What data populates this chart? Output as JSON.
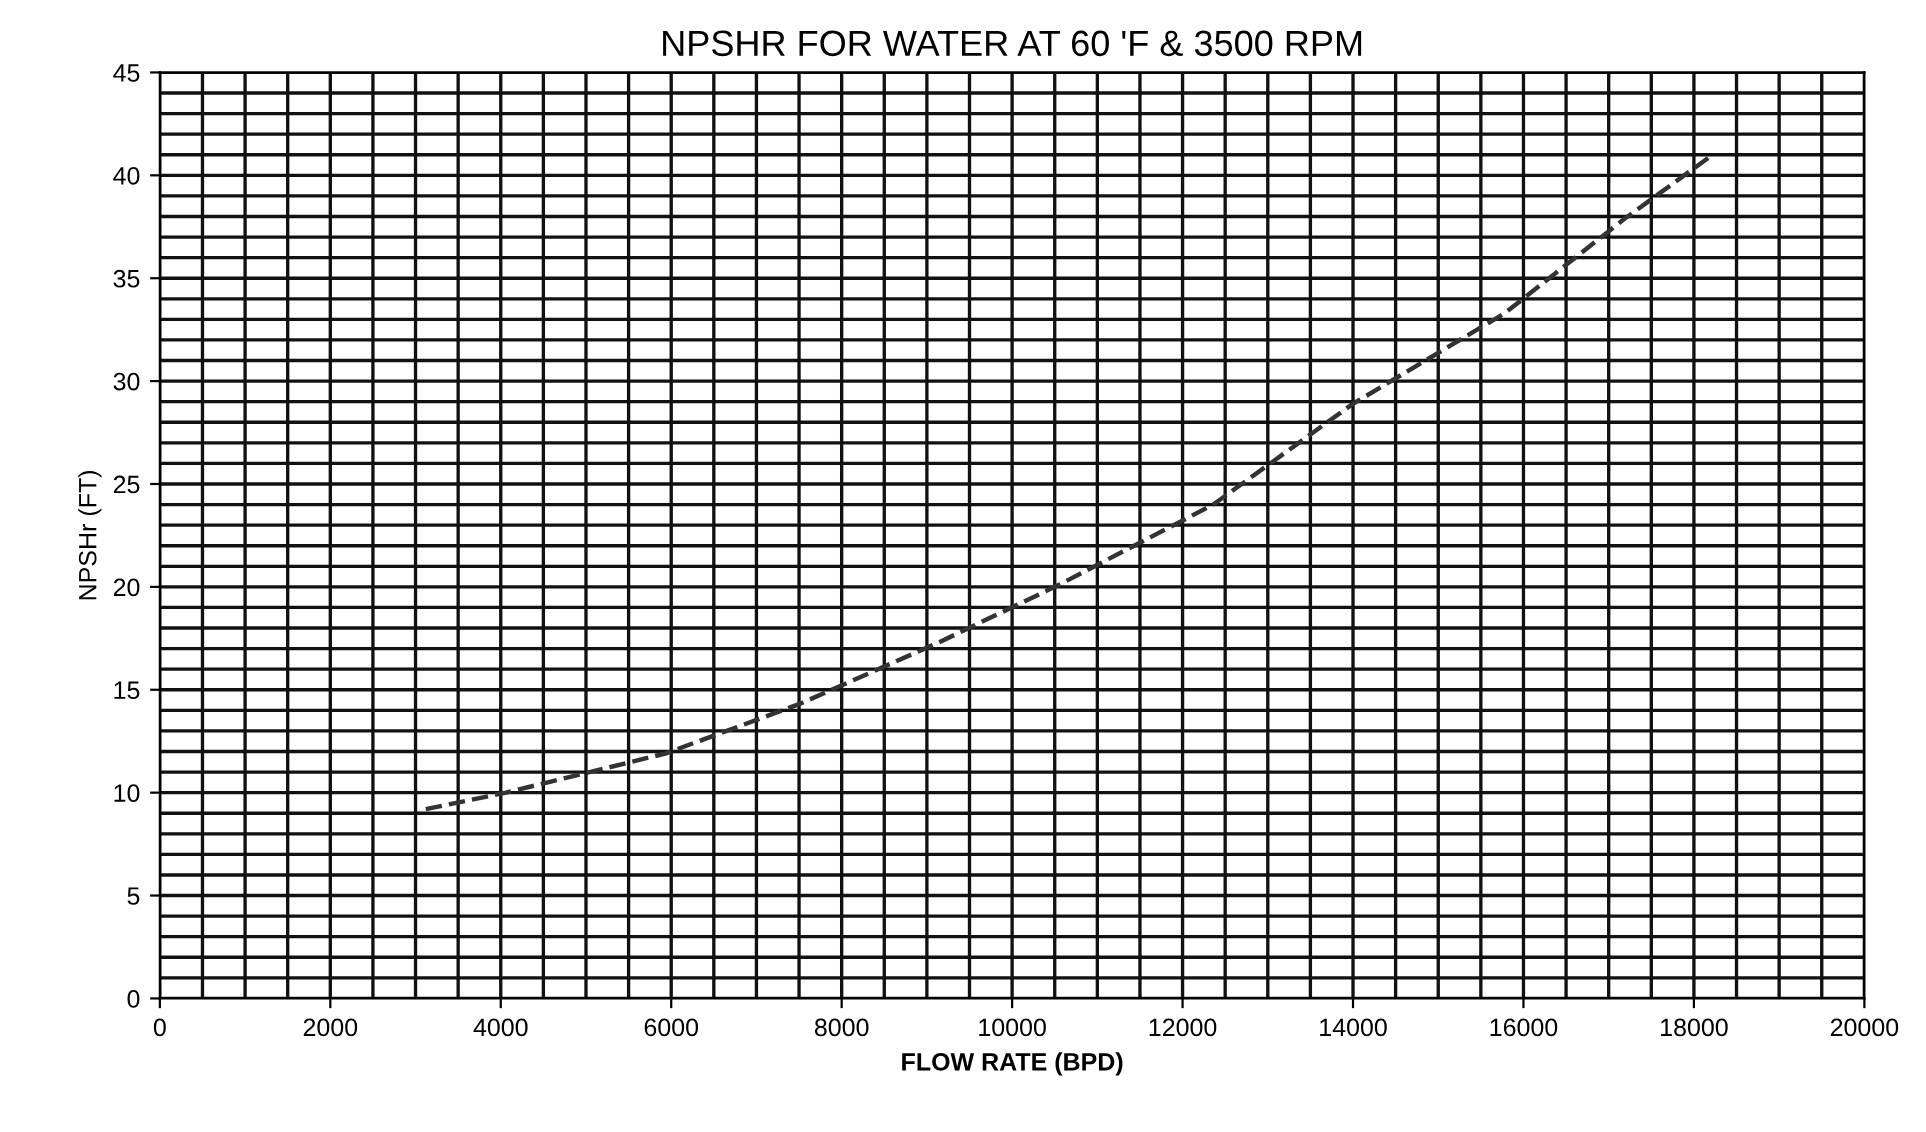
{
  "chart_data": {
    "type": "line",
    "title": "NPSHR FOR WATER AT 60 'F & 3500 RPM",
    "xlabel": "FLOW RATE (BPD)",
    "ylabel": "NPSHr (FT)",
    "x": [
      3120,
      4060,
      5930,
      7500,
      9140,
      10550,
      12360,
      14000,
      15780,
      17190,
      18220
    ],
    "series": [
      {
        "color": "#333333",
        "values": [
          9.2,
          10.0,
          11.9,
          14.3,
          17.3,
          20.1,
          24.0,
          28.9,
          33.3,
          37.9,
          41.0
        ]
      }
    ],
    "xlim": [
      0,
      20000
    ],
    "ylim": [
      0,
      45
    ],
    "xticks": [
      0,
      2000,
      4000,
      6000,
      8000,
      10000,
      12000,
      14000,
      16000,
      18000,
      20000
    ],
    "yticks": [
      0,
      5,
      10,
      15,
      20,
      25,
      30,
      35,
      40,
      45
    ],
    "grid": true,
    "line_style": "dashed",
    "marker": "none"
  }
}
